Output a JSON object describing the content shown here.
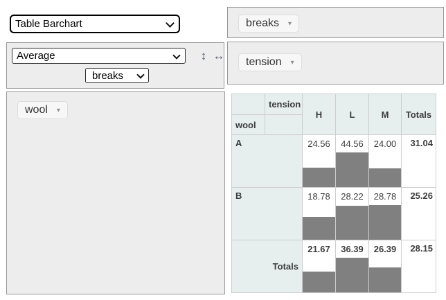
{
  "renderer": {
    "selected": "Table Barchart"
  },
  "aggregator": {
    "selected": "Average",
    "arg_selected": "breaks",
    "row_order_icon": "↕",
    "col_order_icon": "↔"
  },
  "icons": {
    "triangle_down": "▾"
  },
  "unused_attributes": [
    {
      "label": "breaks"
    }
  ],
  "column_attributes": [
    {
      "label": "tension"
    }
  ],
  "row_attributes": [
    {
      "label": "wool"
    }
  ],
  "colors": {
    "bar": "#808080",
    "header_bg": "#e6eeee",
    "cell_border": "#cdcdcd",
    "panel_bg": "#ededed",
    "value_text": "#3d3d3d"
  },
  "chart_data": {
    "type": "table",
    "row_attr": "wool",
    "col_attr": "tension",
    "columns": [
      "H",
      "L",
      "M"
    ],
    "rows": [
      {
        "label": "A",
        "values": [
          24.56,
          44.56,
          24.0
        ],
        "row_total": 31.04
      },
      {
        "label": "B",
        "values": [
          18.78,
          28.22,
          28.78
        ],
        "row_total": 25.26
      }
    ],
    "col_totals": [
      21.67,
      36.39,
      26.39
    ],
    "grand_total": 28.15,
    "totals_label": "Totals",
    "value_format_decimals": 2,
    "bar_scale": "per-row: height% = value / (1.4 * row max)"
  }
}
